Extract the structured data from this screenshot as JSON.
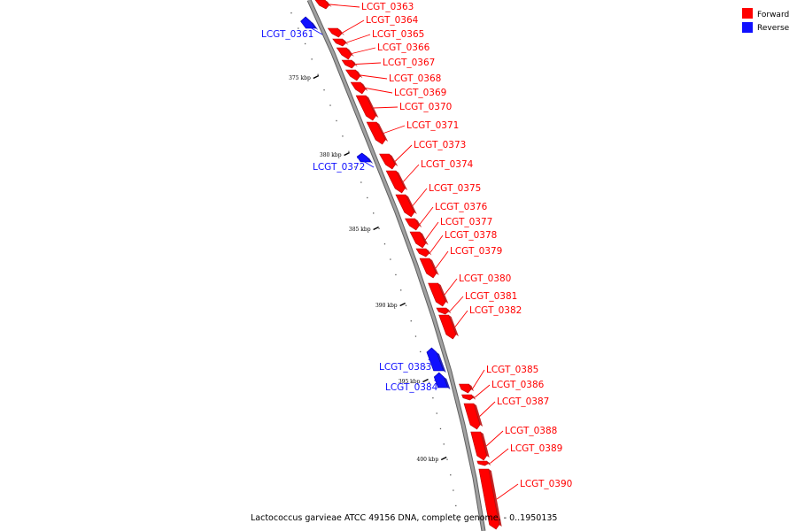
{
  "colors": {
    "forward": "#ff0000",
    "reverse": "#1010ff",
    "backbone": "#a0a0a0",
    "tick": "#000000"
  },
  "legend": {
    "forward": "Forward",
    "reverse": "Reverse"
  },
  "caption": "Lactococcus garvieae ATCC 49156 DNA, complete genome. - 0..1950135",
  "ticks": [
    {
      "label": "375 kbp"
    },
    {
      "label": "380 kbp"
    },
    {
      "label": "385 kbp"
    },
    {
      "label": "390 kbp"
    },
    {
      "label": "395 kbp"
    },
    {
      "label": "400 kbp"
    }
  ],
  "genes": [
    {
      "id": "LCGT_0363",
      "strand": "forward"
    },
    {
      "id": "LCGT_0364",
      "strand": "forward"
    },
    {
      "id": "LCGT_0365",
      "strand": "forward"
    },
    {
      "id": "LCGT_0366",
      "strand": "forward"
    },
    {
      "id": "LCGT_0367",
      "strand": "forward"
    },
    {
      "id": "LCGT_0368",
      "strand": "forward"
    },
    {
      "id": "LCGT_0369",
      "strand": "forward"
    },
    {
      "id": "LCGT_0370",
      "strand": "forward"
    },
    {
      "id": "LCGT_0371",
      "strand": "forward"
    },
    {
      "id": "LCGT_0373",
      "strand": "forward"
    },
    {
      "id": "LCGT_0374",
      "strand": "forward"
    },
    {
      "id": "LCGT_0375",
      "strand": "forward"
    },
    {
      "id": "LCGT_0376",
      "strand": "forward"
    },
    {
      "id": "LCGT_0377",
      "strand": "forward"
    },
    {
      "id": "LCGT_0378",
      "strand": "forward"
    },
    {
      "id": "LCGT_0379",
      "strand": "forward"
    },
    {
      "id": "LCGT_0380",
      "strand": "forward"
    },
    {
      "id": "LCGT_0381",
      "strand": "forward"
    },
    {
      "id": "LCGT_0382",
      "strand": "forward"
    },
    {
      "id": "LCGT_0385",
      "strand": "forward"
    },
    {
      "id": "LCGT_0386",
      "strand": "forward"
    },
    {
      "id": "LCGT_0387",
      "strand": "forward"
    },
    {
      "id": "LCGT_0388",
      "strand": "forward"
    },
    {
      "id": "LCGT_0389",
      "strand": "forward"
    },
    {
      "id": "LCGT_0390",
      "strand": "forward"
    },
    {
      "id": "LCGT_0361",
      "strand": "reverse"
    },
    {
      "id": "LCGT_0372",
      "strand": "reverse"
    },
    {
      "id": "LCGT_0383",
      "strand": "reverse"
    },
    {
      "id": "LCGT_0384",
      "strand": "reverse"
    }
  ]
}
